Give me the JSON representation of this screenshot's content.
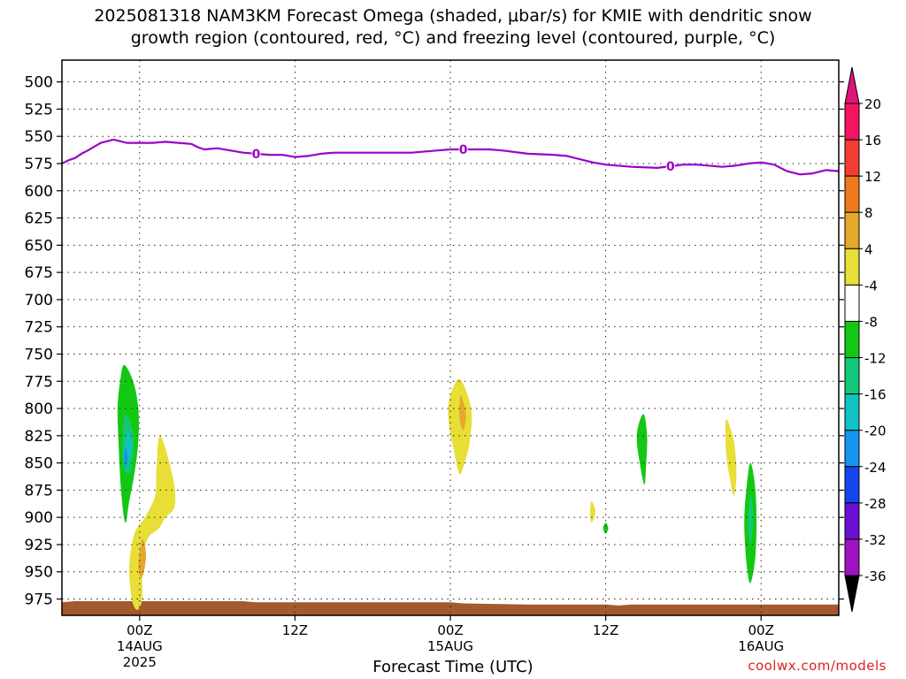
{
  "chart_data": {
    "type": "contour",
    "title_line1": "2025081318 NAM3KM Forecast Omega (shaded, μbar/s) for KMIE with dendritic snow",
    "title_line2": "growth region (contoured, red, °C) and freezing level (contoured, purple, °C)",
    "xlabel": "Forecast Time (UTC)",
    "credit": "coolwx.com/models",
    "x_ticks": [
      {
        "hour": 0,
        "label": "00Z",
        "sub": "14AUG",
        "sub2": "2025"
      },
      {
        "hour": 12,
        "label": "12Z",
        "sub": "",
        "sub2": ""
      },
      {
        "hour": 24,
        "label": "00Z",
        "sub": "15AUG",
        "sub2": ""
      },
      {
        "hour": 36,
        "label": "12Z",
        "sub": "",
        "sub2": ""
      },
      {
        "hour": 48,
        "label": "00Z",
        "sub": "16AUG",
        "sub2": ""
      }
    ],
    "xlim_hours": [
      -6,
      54
    ],
    "y_axis": "pressure (mb)",
    "y_ticks": [
      500,
      525,
      550,
      575,
      600,
      625,
      650,
      675,
      700,
      725,
      750,
      775,
      800,
      825,
      850,
      875,
      900,
      925,
      950,
      975
    ],
    "ylim": [
      480,
      990
    ],
    "grid": true,
    "colorbar": {
      "labels": [
        "20",
        "16",
        "12",
        "8",
        "4",
        "-4",
        "-8",
        "-12",
        "-16",
        "-20",
        "-24",
        "-28",
        "-32",
        "-36"
      ],
      "colors": [
        "#f51460",
        "#f53c32",
        "#ef7a1e",
        "#e6a82a",
        "#e8de36",
        "#ffffff",
        "#12c812",
        "#12c878",
        "#12c2c2",
        "#1496ee",
        "#1446ee",
        "#6a10d2",
        "#a210c4",
        "#a8a8a8",
        "#000000"
      ],
      "top_arrow_color": "#e0147a",
      "bottom_arrow_color": "#000000"
    },
    "freezing_level": {
      "label": "0",
      "color": "#9b00c8",
      "points": [
        [
          -6,
          575
        ],
        [
          -5.5,
          572
        ],
        [
          -5,
          570
        ],
        [
          -4.5,
          566
        ],
        [
          -4,
          563
        ],
        [
          -3,
          556
        ],
        [
          -2,
          553
        ],
        [
          -1,
          556
        ],
        [
          1,
          556
        ],
        [
          2,
          555
        ],
        [
          3,
          556
        ],
        [
          4,
          557
        ],
        [
          4.5,
          560
        ],
        [
          5,
          562
        ],
        [
          6,
          561
        ],
        [
          7,
          563
        ],
        [
          8,
          565
        ],
        [
          9,
          566
        ],
        [
          10,
          567
        ],
        [
          11,
          567
        ],
        [
          12,
          569
        ],
        [
          13,
          568
        ],
        [
          14,
          566
        ],
        [
          15,
          565
        ],
        [
          17,
          565
        ],
        [
          19,
          565
        ],
        [
          21,
          565
        ],
        [
          23,
          563
        ],
        [
          24,
          562
        ],
        [
          26,
          562
        ],
        [
          27,
          562
        ],
        [
          28,
          563
        ],
        [
          30,
          566
        ],
        [
          32,
          567
        ],
        [
          33,
          568
        ],
        [
          34,
          571
        ],
        [
          35,
          574
        ],
        [
          36,
          576
        ],
        [
          38,
          578
        ],
        [
          40,
          579
        ],
        [
          42,
          576
        ],
        [
          43,
          576
        ],
        [
          45,
          578
        ],
        [
          46,
          577
        ],
        [
          47,
          575
        ],
        [
          48,
          574
        ],
        [
          49,
          576
        ],
        [
          50,
          582
        ],
        [
          51,
          585
        ],
        [
          52,
          584
        ],
        [
          53,
          581
        ],
        [
          54,
          582
        ]
      ],
      "label_hours": [
        9,
        25,
        41
      ]
    },
    "omega_regions": [
      {
        "color": "#12c812",
        "points": [
          [
            -1.2,
            760
          ],
          [
            -0.5,
            775
          ],
          [
            -0.1,
            800
          ],
          [
            -0.1,
            830
          ],
          [
            -0.4,
            860
          ],
          [
            -0.8,
            885
          ],
          [
            -1.1,
            905
          ],
          [
            -1.4,
            880
          ],
          [
            -1.6,
            840
          ],
          [
            -1.7,
            800
          ],
          [
            -1.5,
            775
          ]
        ]
      },
      {
        "color": "#12c878",
        "points": [
          [
            -1.1,
            805
          ],
          [
            -0.5,
            822
          ],
          [
            -0.5,
            845
          ],
          [
            -0.8,
            860
          ],
          [
            -1.2,
            855
          ],
          [
            -1.3,
            830
          ]
        ]
      },
      {
        "color": "#12c2c2",
        "points": [
          [
            -0.9,
            822
          ],
          [
            -0.6,
            835
          ],
          [
            -0.9,
            850
          ],
          [
            -1.2,
            840
          ]
        ]
      },
      {
        "color": "#1496ee",
        "points": [
          [
            -1.1,
            835
          ],
          [
            -0.9,
            845
          ],
          [
            -1.1,
            855
          ],
          [
            -1.2,
            845
          ]
        ]
      },
      {
        "color": "#e8de36",
        "points": [
          [
            1.6,
            825
          ],
          [
            2.6,
            865
          ],
          [
            2.7,
            890
          ],
          [
            2.0,
            900
          ],
          [
            1.5,
            910
          ],
          [
            0.6,
            920
          ],
          [
            0.2,
            945
          ],
          [
            0.2,
            975
          ],
          [
            -0.2,
            985
          ],
          [
            -0.6,
            975
          ],
          [
            -0.8,
            945
          ],
          [
            -0.4,
            915
          ],
          [
            0.4,
            900
          ],
          [
            1.2,
            880
          ],
          [
            1.3,
            855
          ]
        ]
      },
      {
        "color": "#e6a82a",
        "points": [
          [
            0.2,
            920
          ],
          [
            0.5,
            935
          ],
          [
            0.2,
            955
          ],
          [
            -0.1,
            945
          ]
        ]
      },
      {
        "color": "#e8de36",
        "points": [
          [
            24.7,
            773
          ],
          [
            25.6,
            800
          ],
          [
            25.5,
            830
          ],
          [
            25.1,
            850
          ],
          [
            24.7,
            860
          ],
          [
            24.3,
            840
          ],
          [
            23.9,
            815
          ],
          [
            23.9,
            793
          ]
        ]
      },
      {
        "color": "#e6a82a",
        "points": [
          [
            24.8,
            788
          ],
          [
            25.2,
            805
          ],
          [
            25.0,
            820
          ],
          [
            24.7,
            808
          ]
        ]
      },
      {
        "color": "#e8de36",
        "points": [
          [
            34.9,
            885
          ],
          [
            35.2,
            895
          ],
          [
            34.9,
            905
          ],
          [
            34.8,
            895
          ]
        ]
      },
      {
        "color": "#12c812",
        "points": [
          [
            36.0,
            905
          ],
          [
            36.2,
            910
          ],
          [
            36.0,
            915
          ],
          [
            35.8,
            910
          ]
        ]
      },
      {
        "color": "#12c812",
        "points": [
          [
            38.9,
            805
          ],
          [
            39.2,
            825
          ],
          [
            39.1,
            855
          ],
          [
            39.0,
            870
          ],
          [
            38.7,
            855
          ],
          [
            38.4,
            825
          ]
        ]
      },
      {
        "color": "#e8de36",
        "points": [
          [
            45.3,
            810
          ],
          [
            45.9,
            830
          ],
          [
            46.1,
            860
          ],
          [
            45.9,
            880
          ],
          [
            45.6,
            865
          ],
          [
            45.3,
            840
          ]
        ]
      },
      {
        "color": "#12c812",
        "points": [
          [
            47.2,
            850
          ],
          [
            47.6,
            880
          ],
          [
            47.6,
            930
          ],
          [
            47.2,
            960
          ],
          [
            46.9,
            945
          ],
          [
            46.7,
            905
          ],
          [
            46.9,
            870
          ]
        ]
      },
      {
        "color": "#12c878",
        "points": [
          [
            47.2,
            880
          ],
          [
            47.4,
            900
          ],
          [
            47.2,
            925
          ],
          [
            47.0,
            905
          ]
        ]
      }
    ],
    "surface": {
      "color": "#a35a2c",
      "points": [
        [
          -6,
          978
        ],
        [
          -5,
          977
        ],
        [
          0,
          977
        ],
        [
          5,
          977
        ],
        [
          8,
          977
        ],
        [
          9,
          978
        ],
        [
          15,
          978
        ],
        [
          24,
          978
        ],
        [
          25,
          979
        ],
        [
          30,
          980
        ],
        [
          36,
          980
        ],
        [
          37,
          981
        ],
        [
          38,
          980
        ],
        [
          44,
          980
        ],
        [
          50,
          980
        ],
        [
          54,
          980
        ]
      ]
    }
  }
}
